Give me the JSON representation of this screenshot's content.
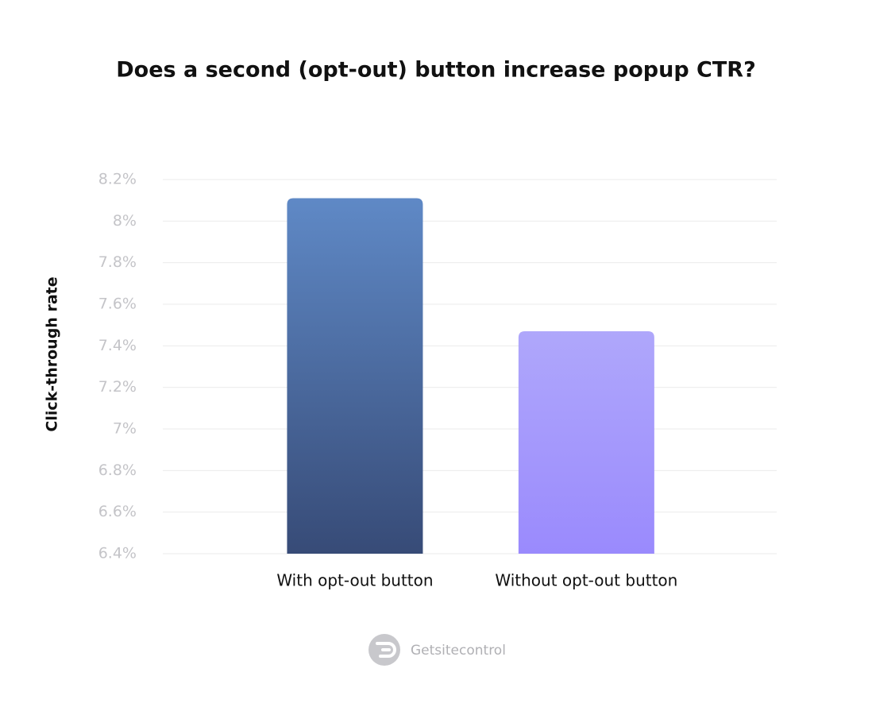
{
  "chart_data": {
    "type": "bar",
    "title": "Does a second (opt-out) button increase popup CTR?",
    "y_label": "Click-through rate",
    "categories": [
      "With opt-out button",
      "Without opt-out button"
    ],
    "values": [
      8.11,
      7.47
    ],
    "gradients": [
      {
        "top": "#5f89c6",
        "bottom": "#374b77"
      },
      {
        "top": "#afa7fb",
        "bottom": "#9a8afd"
      }
    ],
    "ylim": [
      6.4,
      8.2
    ],
    "yticks": [
      {
        "value": 6.4,
        "label": "6.4%"
      },
      {
        "value": 6.6,
        "label": "6.6%"
      },
      {
        "value": 6.8,
        "label": "6.8%"
      },
      {
        "value": 7,
        "label": "7%"
      },
      {
        "value": 7.2,
        "label": "7.2%"
      },
      {
        "value": 7.4,
        "label": "7.4%"
      },
      {
        "value": 7.6,
        "label": "7.6%"
      },
      {
        "value": 7.8,
        "label": "7.8%"
      },
      {
        "value": 8,
        "label": "8%"
      },
      {
        "value": 8.2,
        "label": "8.2%"
      }
    ],
    "grid": true,
    "brand": "Getsitecontrol"
  }
}
